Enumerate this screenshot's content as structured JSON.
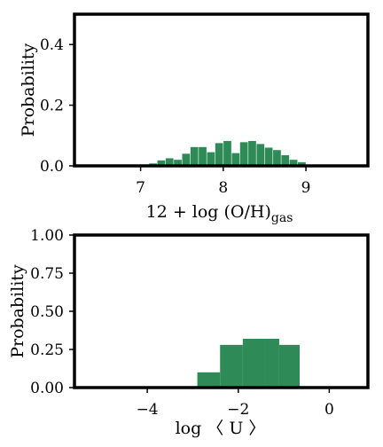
{
  "chart_data": [
    {
      "type": "bar",
      "xlabel_main": "12 + log (O/H)",
      "xlabel_sub": "gas",
      "ylabel": "Probability",
      "xlim": [
        6.2,
        9.75
      ],
      "ylim": [
        0,
        0.5
      ],
      "xticks": [
        7,
        8,
        9
      ],
      "yticks": [
        0.0,
        0.2,
        0.4
      ],
      "ytick_labels": [
        "0.0",
        "0.2",
        "0.4"
      ],
      "bar_color": "#2e8b57",
      "bin_width": 0.1,
      "bins": [
        {
          "x": 7.15,
          "y": 0.008
        },
        {
          "x": 7.25,
          "y": 0.018
        },
        {
          "x": 7.35,
          "y": 0.025
        },
        {
          "x": 7.45,
          "y": 0.02
        },
        {
          "x": 7.55,
          "y": 0.04
        },
        {
          "x": 7.65,
          "y": 0.062
        },
        {
          "x": 7.75,
          "y": 0.062
        },
        {
          "x": 7.85,
          "y": 0.045
        },
        {
          "x": 7.95,
          "y": 0.075
        },
        {
          "x": 8.05,
          "y": 0.082
        },
        {
          "x": 8.15,
          "y": 0.042
        },
        {
          "x": 8.25,
          "y": 0.078
        },
        {
          "x": 8.35,
          "y": 0.082
        },
        {
          "x": 8.45,
          "y": 0.072
        },
        {
          "x": 8.55,
          "y": 0.06
        },
        {
          "x": 8.65,
          "y": 0.052
        },
        {
          "x": 8.75,
          "y": 0.035
        },
        {
          "x": 8.85,
          "y": 0.02
        },
        {
          "x": 8.95,
          "y": 0.012
        },
        {
          "x": 9.05,
          "y": 0.004
        }
      ]
    },
    {
      "type": "bar",
      "xlabel": "log 〈 U 〉",
      "ylabel": "Probability",
      "xlim": [
        -5.6,
        0.85
      ],
      "ylim": [
        0,
        1.0
      ],
      "xticks": [
        -4,
        -2,
        0
      ],
      "xtick_labels": [
        "−4",
        "−2",
        "0"
      ],
      "yticks": [
        0.0,
        0.25,
        0.5,
        0.75,
        1.0
      ],
      "ytick_labels": [
        "0.00",
        "0.25",
        "0.50",
        "0.75",
        "1.00"
      ],
      "bar_color": "#2e8b57",
      "bins": [
        {
          "x0": -2.9,
          "x1": -2.4,
          "y": 0.1
        },
        {
          "x0": -2.4,
          "x1": -1.9,
          "y": 0.28
        },
        {
          "x0": -1.9,
          "x1": -1.4,
          "y": 0.32
        },
        {
          "x0": -1.4,
          "x1": -1.1,
          "y": 0.32
        },
        {
          "x0": -1.1,
          "x1": -0.65,
          "y": 0.28
        }
      ]
    }
  ]
}
